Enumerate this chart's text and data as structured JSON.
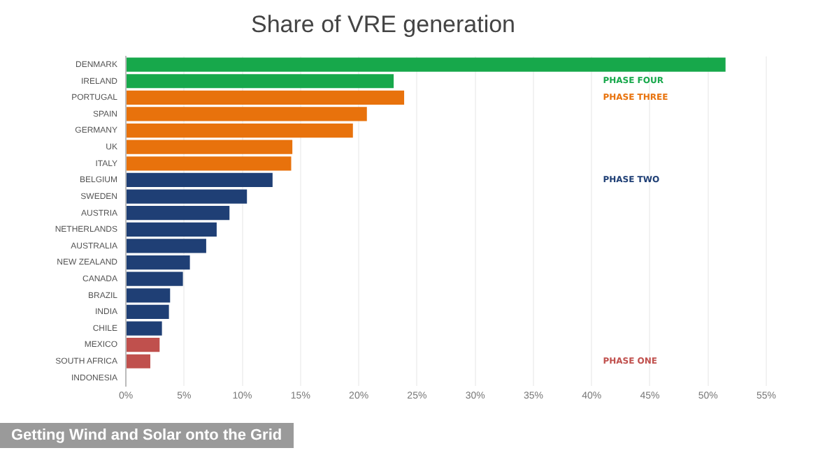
{
  "chart_data": {
    "type": "bar",
    "orientation": "horizontal",
    "title": "Share of VRE generation",
    "categories": [
      "DENMARK",
      "IRELAND",
      "PORTUGAL",
      "SPAIN",
      "GERMANY",
      "UK",
      "ITALY",
      "BELGIUM",
      "SWEDEN",
      "AUSTRIA",
      "NETHERLANDS",
      "AUSTRALIA",
      "NEW ZEALAND",
      "CANADA",
      "BRAZIL",
      "INDIA",
      "CHILE",
      "MEXICO",
      "SOUTH AFRICA",
      "INDONESIA"
    ],
    "values": [
      51.5,
      23.0,
      23.9,
      20.7,
      19.5,
      14.3,
      14.2,
      12.6,
      10.4,
      8.9,
      7.8,
      6.9,
      5.5,
      4.9,
      3.8,
      3.7,
      3.1,
      2.9,
      2.1,
      0
    ],
    "colors": [
      "#17a84b",
      "#17a84b",
      "#e8720c",
      "#e8720c",
      "#e8720c",
      "#e8720c",
      "#e8720c",
      "#1f3f75",
      "#1f3f75",
      "#1f3f75",
      "#1f3f75",
      "#1f3f75",
      "#1f3f75",
      "#1f3f75",
      "#1f3f75",
      "#1f3f75",
      "#1f3f75",
      "#c0504d",
      "#c0504d",
      "#c0504d"
    ],
    "xlim": [
      0,
      55
    ],
    "xticks": [
      {
        "value": 0,
        "label": "0%"
      },
      {
        "value": 5,
        "label": "5%"
      },
      {
        "value": 10,
        "label": "10%"
      },
      {
        "value": 15,
        "label": "15%"
      },
      {
        "value": 20,
        "label": "20%"
      },
      {
        "value": 25,
        "label": "25%"
      },
      {
        "value": 30,
        "label": "30%"
      },
      {
        "value": 35,
        "label": "35%"
      },
      {
        "value": 40,
        "label": "40%"
      },
      {
        "value": 45,
        "label": "45%"
      },
      {
        "value": 50,
        "label": "50%"
      },
      {
        "value": 55,
        "label": "55%"
      }
    ],
    "grid": "x",
    "legend": false,
    "annotations": [
      "PHASE FOUR",
      "PHASE THREE",
      "PHASE TWO",
      "PHASE ONE",
      "Getting Wind and Solar onto the Grid"
    ]
  }
}
